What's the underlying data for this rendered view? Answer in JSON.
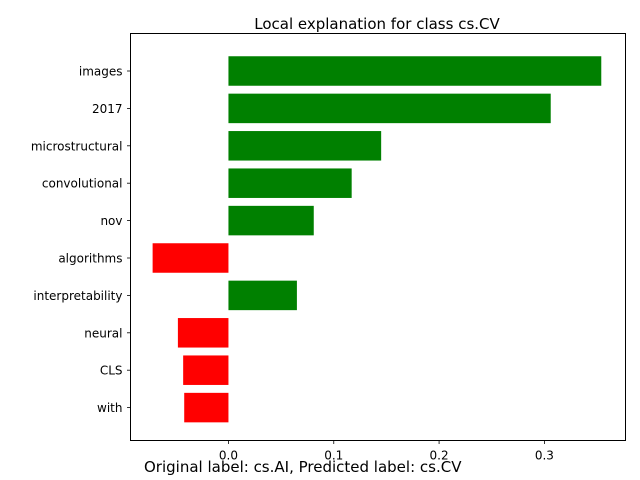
{
  "chart_data": {
    "type": "bar",
    "orientation": "horizontal",
    "title": "Local explanation for class cs.CV",
    "categories": [
      "images",
      "2017",
      "microstructural",
      "convolutional",
      "nov",
      "algorithms",
      "interpretability",
      "neural",
      "CLS",
      "with"
    ],
    "values": [
      0.354,
      0.306,
      0.145,
      0.117,
      0.081,
      -0.072,
      0.065,
      -0.048,
      -0.043,
      -0.042
    ],
    "positive_color": "#008000",
    "negative_color": "#ff0000",
    "xlim": [
      -0.093,
      0.377
    ],
    "xticks": [
      0.0,
      0.1,
      0.2,
      0.3
    ],
    "xtick_labels": [
      "0.0",
      "0.1",
      "0.2",
      "0.3"
    ],
    "xlabel": "",
    "ylabel": "",
    "grid": false
  },
  "footer": {
    "text": "Original label: cs.AI, Predicted label: cs.CV"
  }
}
